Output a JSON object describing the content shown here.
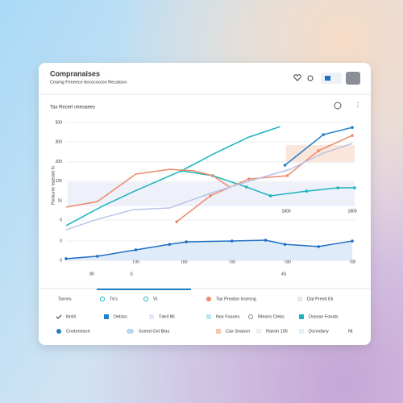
{
  "header": {
    "title": "Compranaises",
    "subtitle": "Ceamg Feneece becocoorse Recstoon"
  },
  "chart_data": {
    "type": "line",
    "title": "Tax Recerl ımesaees",
    "y_label": "Paclaume Iaaesste fo",
    "xlim": [
      0,
      12
    ],
    "ylim": [
      0,
      500
    ],
    "yticks": [
      500,
      {
        "value": 430,
        "label": "300"
      },
      {
        "value": 357,
        "label": "200"
      },
      {
        "value": 287,
        "label": "125"
      },
      {
        "value": 216,
        "label": "16"
      },
      {
        "value": 146,
        "label": "0"
      },
      {
        "value": 70,
        "label": "0"
      },
      0
    ],
    "xticks": [
      {
        "value": 2.9,
        "label": "T00"
      },
      {
        "value": 4.9,
        "label": "T80"
      },
      {
        "value": 6.9,
        "label": "T00"
      },
      {
        "value": 9.2,
        "label": "T80"
      },
      {
        "value": 11.9,
        "label": "T00"
      }
    ],
    "grid": true,
    "series": [
      {
        "color": "#1bb3bf",
        "x": [
          0,
          1.5,
          2.8,
          4.8,
          6.2,
          7.6,
          8.9
        ],
        "values": [
          126,
          196,
          249,
          325,
          389,
          447,
          485
        ]
      },
      {
        "color": "#1bb3bf",
        "x": [
          4.8,
          6.1,
          7.5,
          8.5,
          10,
          11.3,
          12
        ],
        "values": [
          325,
          307,
          266,
          234,
          251,
          263,
          263
        ],
        "markers": true
      },
      {
        "color": "#ee8a6c",
        "x": [
          0,
          1.3,
          2.9,
          4.3,
          5.3,
          6.1,
          6.8
        ],
        "values": [
          193,
          213,
          313,
          330,
          325,
          307,
          266
        ]
      },
      {
        "color": "#ee8a6c",
        "x": [
          4.6,
          6,
          7.6,
          9.2,
          10.5,
          11.9
        ],
        "values": [
          140,
          234,
          295,
          307,
          398,
          453
        ],
        "markers": true
      },
      {
        "color": "#1f7fc8",
        "x": [
          9.1,
          10.7,
          11.9
        ],
        "values": [
          345,
          456,
          482
        ],
        "markers": true
      },
      {
        "color": "#b9c3e6",
        "x": [
          0,
          1.3,
          2.8,
          4.3,
          6,
          7.6,
          9.3,
          10.7,
          11.9
        ],
        "values": [
          111,
          149,
          184,
          190,
          243,
          287,
          330,
          389,
          424
        ]
      },
      {
        "color": "#1f6fc4",
        "x": [
          0,
          1.3,
          2.9,
          4.3,
          5,
          6.9,
          8.3,
          9.1,
          10.5,
          11.9
        ],
        "values": [
          6,
          15,
          38,
          58,
          67,
          70,
          73,
          58,
          50,
          70
        ],
        "markers": true,
        "fill": "#d6e6f8"
      }
    ],
    "annotations": [
      "1800",
      "1800",
      "80",
      "S",
      "4S"
    ]
  },
  "legend": {
    "rows": [
      [
        "Tarnes",
        "Tk's",
        "Vt",
        "Tax Preatse Insesng",
        "Dat Prestt Ek"
      ],
      [
        "Nr4X",
        "Detcks",
        "Tdeit Mi",
        "Nox Fosoes",
        "Rtesirs Cteks",
        "Dsesse Fooats"
      ],
      [
        "Cnoteneson",
        "Soeed Ost Blas",
        "Cax Snanon",
        "Raeon 105",
        "Dsnndany",
        "Nt"
      ]
    ]
  }
}
